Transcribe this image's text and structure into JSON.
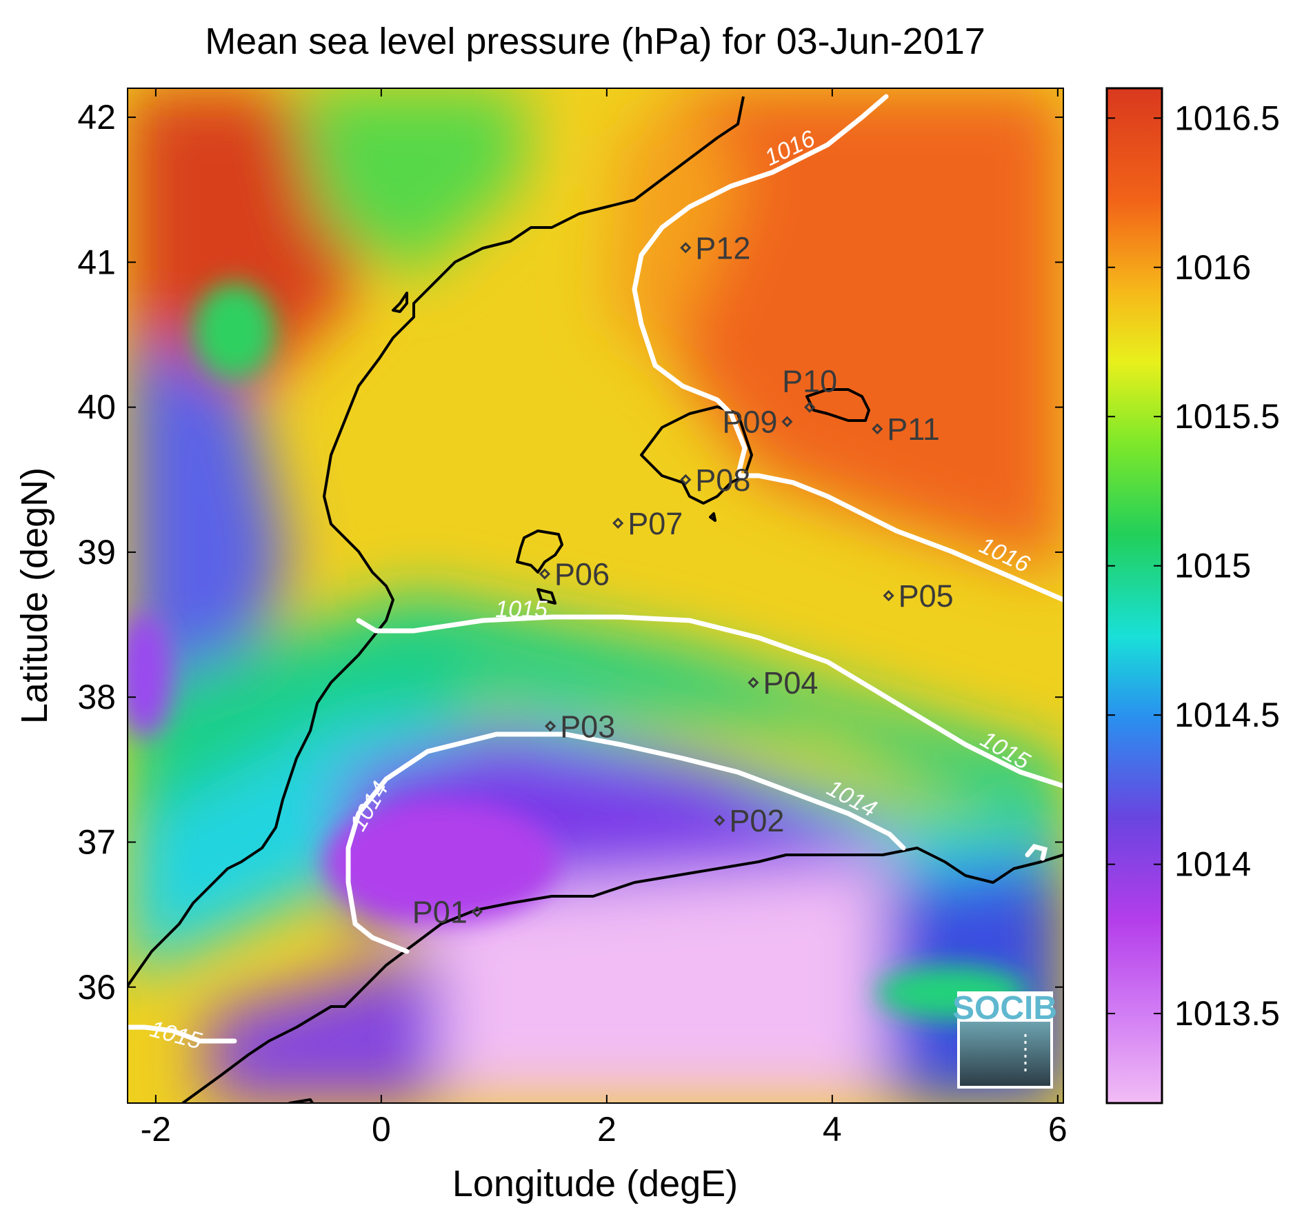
{
  "title": "Mean sea level pressure (hPa) for 03-Jun-2017",
  "x_axis": {
    "label": "Longitude (degE)",
    "range": [
      -2.25,
      6.05
    ],
    "ticks": [
      {
        "v": -2,
        "t": "-2"
      },
      {
        "v": 0,
        "t": "0"
      },
      {
        "v": 2,
        "t": "2"
      },
      {
        "v": 4,
        "t": "4"
      },
      {
        "v": 6,
        "t": "6"
      }
    ]
  },
  "y_axis": {
    "label": "Latitude (degN)",
    "range": [
      35.2,
      42.2
    ],
    "ticks": [
      {
        "v": 36,
        "t": "36"
      },
      {
        "v": 37,
        "t": "37"
      },
      {
        "v": 38,
        "t": "38"
      },
      {
        "v": 39,
        "t": "39"
      },
      {
        "v": 40,
        "t": "40"
      },
      {
        "v": 41,
        "t": "41"
      },
      {
        "v": 42,
        "t": "42"
      }
    ]
  },
  "colorbar": {
    "range": [
      1013.2,
      1016.6
    ],
    "ticks": [
      {
        "v": 1013.5,
        "t": "1013.5"
      },
      {
        "v": 1014,
        "t": "1014"
      },
      {
        "v": 1014.5,
        "t": "1014.5"
      },
      {
        "v": 1015,
        "t": "1015"
      },
      {
        "v": 1015.5,
        "t": "1015.5"
      },
      {
        "v": 1016,
        "t": "1016"
      },
      {
        "v": 1016.5,
        "t": "1016.5"
      }
    ],
    "colors": [
      "#f2bdf5",
      "#c53cf0",
      "#6a44e0",
      "#2aa6f0",
      "#19e0d8",
      "#22cf5a",
      "#7ee82a",
      "#e8f01c",
      "#f6b81a",
      "#f26318",
      "#d9391e"
    ]
  },
  "contour_labels": [
    "1016",
    "1016",
    "1015",
    "1015",
    "1014",
    "1014",
    "1015"
  ],
  "stations": [
    {
      "id": "P01",
      "lon": 0.85,
      "lat": 36.52
    },
    {
      "id": "P02",
      "lon": 3.0,
      "lat": 37.15
    },
    {
      "id": "P03",
      "lon": 1.5,
      "lat": 37.8
    },
    {
      "id": "P04",
      "lon": 3.3,
      "lat": 38.1
    },
    {
      "id": "P05",
      "lon": 4.5,
      "lat": 38.7
    },
    {
      "id": "P06",
      "lon": 1.45,
      "lat": 38.85
    },
    {
      "id": "P07",
      "lon": 2.1,
      "lat": 39.2
    },
    {
      "id": "P08",
      "lon": 2.7,
      "lat": 39.5
    },
    {
      "id": "P09",
      "lon": 3.6,
      "lat": 39.9
    },
    {
      "id": "P10",
      "lon": 3.8,
      "lat": 40.0
    },
    {
      "id": "P11",
      "lon": 4.4,
      "lat": 39.85
    },
    {
      "id": "P12",
      "lon": 2.7,
      "lat": 41.1
    }
  ],
  "logo": {
    "text": "SOCIB"
  }
}
